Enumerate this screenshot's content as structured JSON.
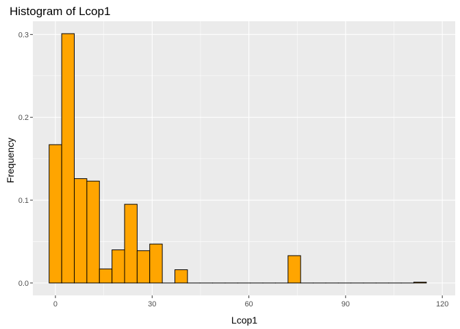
{
  "chart_data": {
    "type": "bar",
    "subtype": "histogram",
    "title": "Histogram of Lcop1",
    "xlabel": "Lcop1",
    "ylabel": "Frequency",
    "bin_width": 3.9,
    "bins": [
      {
        "x": 0.0,
        "value": 0.167
      },
      {
        "x": 3.9,
        "value": 0.301
      },
      {
        "x": 7.8,
        "value": 0.126
      },
      {
        "x": 11.7,
        "value": 0.123
      },
      {
        "x": 15.6,
        "value": 0.017
      },
      {
        "x": 19.5,
        "value": 0.04
      },
      {
        "x": 23.4,
        "value": 0.095
      },
      {
        "x": 27.3,
        "value": 0.039
      },
      {
        "x": 31.2,
        "value": 0.047
      },
      {
        "x": 35.1,
        "value": 0.0
      },
      {
        "x": 39.0,
        "value": 0.016
      },
      {
        "x": 42.9,
        "value": 0.0
      },
      {
        "x": 46.8,
        "value": 0.0
      },
      {
        "x": 50.7,
        "value": 0.0
      },
      {
        "x": 54.6,
        "value": 0.0
      },
      {
        "x": 58.5,
        "value": 0.0
      },
      {
        "x": 62.4,
        "value": 0.0
      },
      {
        "x": 66.3,
        "value": 0.0
      },
      {
        "x": 70.2,
        "value": 0.0
      },
      {
        "x": 74.1,
        "value": 0.033
      },
      {
        "x": 78.0,
        "value": 0.0
      },
      {
        "x": 81.9,
        "value": 0.0
      },
      {
        "x": 85.8,
        "value": 0.0
      },
      {
        "x": 89.7,
        "value": 0.0
      },
      {
        "x": 93.6,
        "value": 0.0
      },
      {
        "x": 97.5,
        "value": 0.0
      },
      {
        "x": 101.4,
        "value": 0.0
      },
      {
        "x": 105.3,
        "value": 0.0
      },
      {
        "x": 109.2,
        "value": 0.0
      },
      {
        "x": 113.1,
        "value": 0.001
      }
    ],
    "x_ticks": [
      "0",
      "30",
      "60",
      "90",
      "120"
    ],
    "y_ticks": [
      "0.0",
      "0.1",
      "0.2",
      "0.3"
    ],
    "xlim": [
      -7,
      124
    ],
    "ylim": [
      -0.015,
      0.316
    ],
    "grid": true,
    "colors": {
      "bar_fill": "#FFA500",
      "bar_stroke": "#000000",
      "panel_background": "#EBEBEB",
      "grid": "#FFFFFF"
    }
  }
}
